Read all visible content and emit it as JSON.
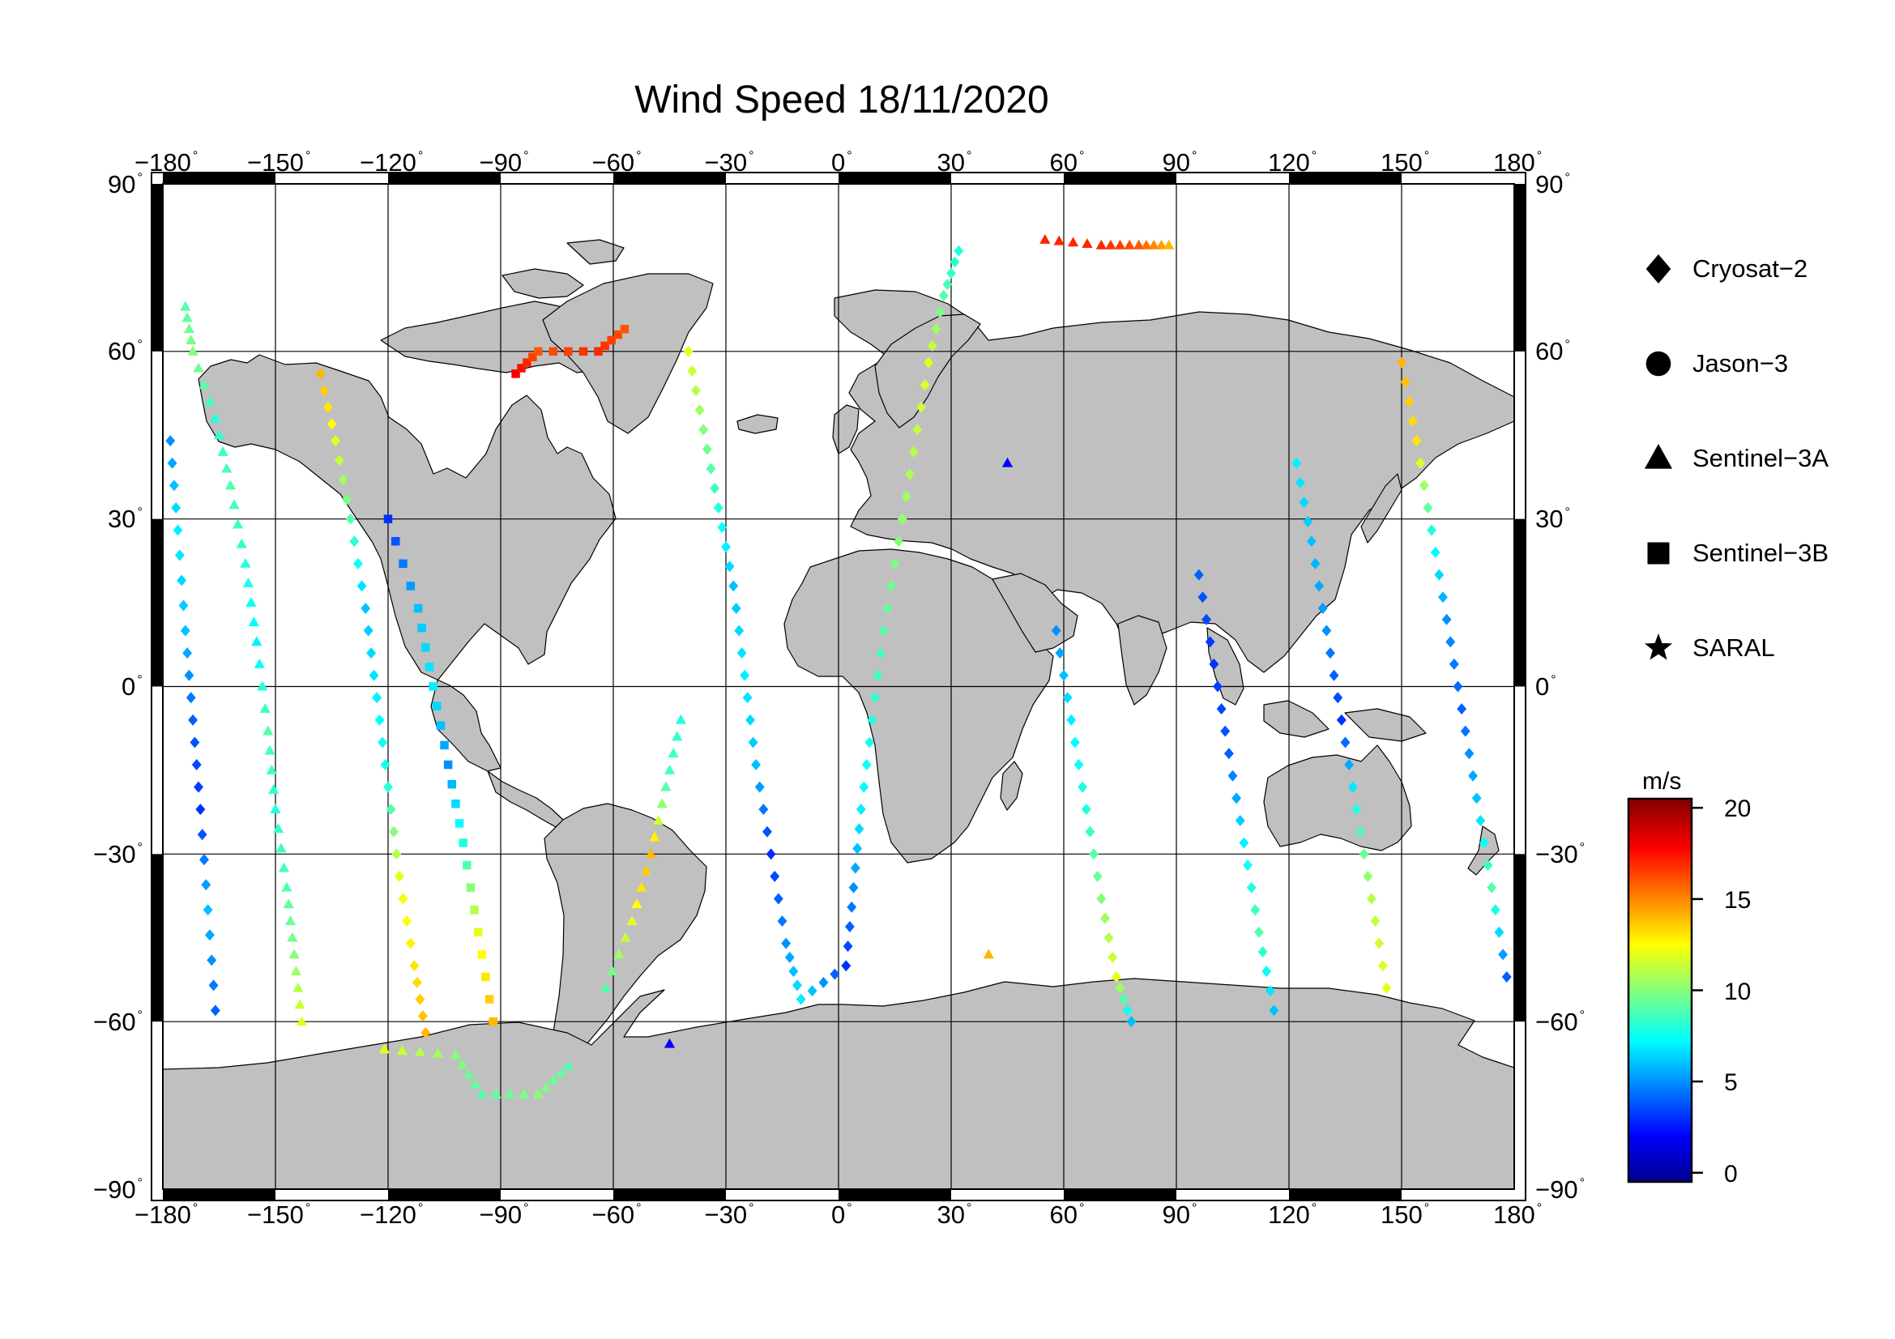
{
  "title": "Wind Speed 18/11/2020",
  "axes": {
    "lon_ticks": [
      -180,
      -150,
      -120,
      -90,
      -60,
      -30,
      0,
      30,
      60,
      90,
      120,
      150,
      180
    ],
    "lat_ticks": [
      90,
      60,
      30,
      0,
      -30,
      -60,
      -90
    ],
    "lon_range": [
      -180,
      180
    ],
    "lat_range": [
      -90,
      90
    ],
    "degree_symbol": "°",
    "grid": true,
    "frame": "alternating black/white degree bars"
  },
  "legend": {
    "placement": "right",
    "items": [
      {
        "label": "Cryosat−2",
        "marker": "diamond"
      },
      {
        "label": "Jason−3",
        "marker": "circle"
      },
      {
        "label": "Sentinel−3A",
        "marker": "triangle"
      },
      {
        "label": "Sentinel−3B",
        "marker": "square"
      },
      {
        "label": "SARAL",
        "marker": "star"
      }
    ]
  },
  "colorbar": {
    "unit": "m/s",
    "range": [
      -0.5,
      20.5
    ],
    "ticks": [
      0,
      5,
      10,
      15,
      20
    ],
    "colormap": "jet",
    "colors": [
      "#00008f",
      "#0000ff",
      "#00ffff",
      "#ffff00",
      "#ff0000",
      "#800000"
    ]
  },
  "map": {
    "land_color": "#c0c0c0",
    "coast_color": "#000000",
    "ocean_color": "#ffffff"
  },
  "chart_data": {
    "type": "scatter",
    "title": "Wind Speed 18/11/2020",
    "xlabel": "",
    "ylabel": "",
    "xlim": [
      -180,
      180
    ],
    "ylim": [
      -90,
      90
    ],
    "color_unit": "m/s",
    "tracks": [
      {
        "mission": "Sentinel-3A",
        "marker": "triangle",
        "points": [
          [
            -174,
            68,
            9
          ],
          [
            -172,
            60,
            10
          ],
          [
            -166,
            48,
            8
          ],
          [
            -162,
            36,
            9
          ],
          [
            -158,
            22,
            8
          ],
          [
            -155,
            8,
            7
          ],
          [
            -152,
            -8,
            9
          ],
          [
            -150,
            -22,
            8
          ],
          [
            -147,
            -36,
            9
          ],
          [
            -145,
            -48,
            10
          ],
          [
            -143,
            -60,
            12
          ],
          [
            -121,
            -65,
            12
          ],
          [
            -102,
            -66,
            10
          ],
          [
            -95,
            -73,
            9
          ],
          [
            -80,
            -73,
            10
          ],
          [
            -72,
            -68,
            9
          ],
          [
            -45,
            -64,
            2
          ],
          [
            40,
            -48,
            14
          ],
          [
            45,
            40,
            2
          ],
          [
            55,
            80,
            17
          ],
          [
            70,
            79,
            17
          ],
          [
            80,
            79,
            16
          ],
          [
            88,
            79,
            14
          ],
          [
            -62,
            -54,
            9
          ],
          [
            -55,
            -42,
            12
          ],
          [
            -50,
            -30,
            14
          ],
          [
            -46,
            -18,
            9
          ],
          [
            -42,
            -6,
            8
          ]
        ]
      },
      {
        "mission": "Sentinel-3B",
        "marker": "square",
        "points": [
          [
            -120,
            30,
            3
          ],
          [
            -112,
            14,
            6
          ],
          [
            -108,
            0,
            7
          ],
          [
            -104,
            -14,
            5
          ],
          [
            -100,
            -28,
            8
          ],
          [
            -96,
            -44,
            12
          ],
          [
            -92,
            -60,
            14
          ],
          [
            -86,
            56,
            18
          ],
          [
            -80,
            60,
            16
          ],
          [
            -64,
            60,
            17
          ],
          [
            -57,
            64,
            16
          ]
        ]
      },
      {
        "mission": "Cryosat-2",
        "marker": "diamond",
        "points": [
          [
            -178,
            44,
            5
          ],
          [
            -176,
            28,
            7
          ],
          [
            -174,
            10,
            6
          ],
          [
            -172,
            -6,
            4
          ],
          [
            -170,
            -22,
            3
          ],
          [
            -168,
            -40,
            6
          ],
          [
            -166,
            -58,
            4
          ],
          [
            -138,
            56,
            14
          ],
          [
            -134,
            44,
            12
          ],
          [
            -130,
            30,
            9
          ],
          [
            -126,
            14,
            6
          ],
          [
            -123,
            -2,
            7
          ],
          [
            -120,
            -18,
            8
          ],
          [
            -117,
            -34,
            12
          ],
          [
            -113,
            -50,
            13
          ],
          [
            -110,
            -62,
            14
          ],
          [
            -40,
            60,
            12
          ],
          [
            -36,
            46,
            10
          ],
          [
            -32,
            32,
            8
          ],
          [
            -28,
            18,
            6
          ],
          [
            -25,
            2,
            7
          ],
          [
            -22,
            -14,
            6
          ],
          [
            -18,
            -30,
            3
          ],
          [
            -14,
            -46,
            5
          ],
          [
            -10,
            -56,
            7
          ],
          [
            2,
            -50,
            3
          ],
          [
            4,
            -36,
            5
          ],
          [
            6,
            -22,
            7
          ],
          [
            9,
            -6,
            8
          ],
          [
            12,
            10,
            9
          ],
          [
            16,
            26,
            10
          ],
          [
            20,
            42,
            11
          ],
          [
            24,
            58,
            12
          ],
          [
            28,
            70,
            9
          ],
          [
            32,
            78,
            8
          ],
          [
            58,
            10,
            5
          ],
          [
            62,
            -6,
            7
          ],
          [
            66,
            -22,
            8
          ],
          [
            70,
            -38,
            10
          ],
          [
            74,
            -52,
            12
          ],
          [
            78,
            -60,
            6
          ],
          [
            96,
            20,
            4
          ],
          [
            100,
            4,
            3
          ],
          [
            104,
            -12,
            4
          ],
          [
            108,
            -28,
            7
          ],
          [
            112,
            -44,
            9
          ],
          [
            116,
            -58,
            6
          ],
          [
            122,
            40,
            7
          ],
          [
            126,
            26,
            6
          ],
          [
            130,
            10,
            5
          ],
          [
            134,
            -6,
            3
          ],
          [
            138,
            -22,
            8
          ],
          [
            142,
            -38,
            11
          ],
          [
            146,
            -54,
            12
          ],
          [
            150,
            58,
            14
          ],
          [
            154,
            44,
            13
          ],
          [
            158,
            28,
            8
          ],
          [
            162,
            12,
            5
          ],
          [
            166,
            -4,
            4
          ],
          [
            170,
            -20,
            6
          ],
          [
            174,
            -36,
            9
          ],
          [
            178,
            -52,
            4
          ]
        ]
      }
    ]
  }
}
